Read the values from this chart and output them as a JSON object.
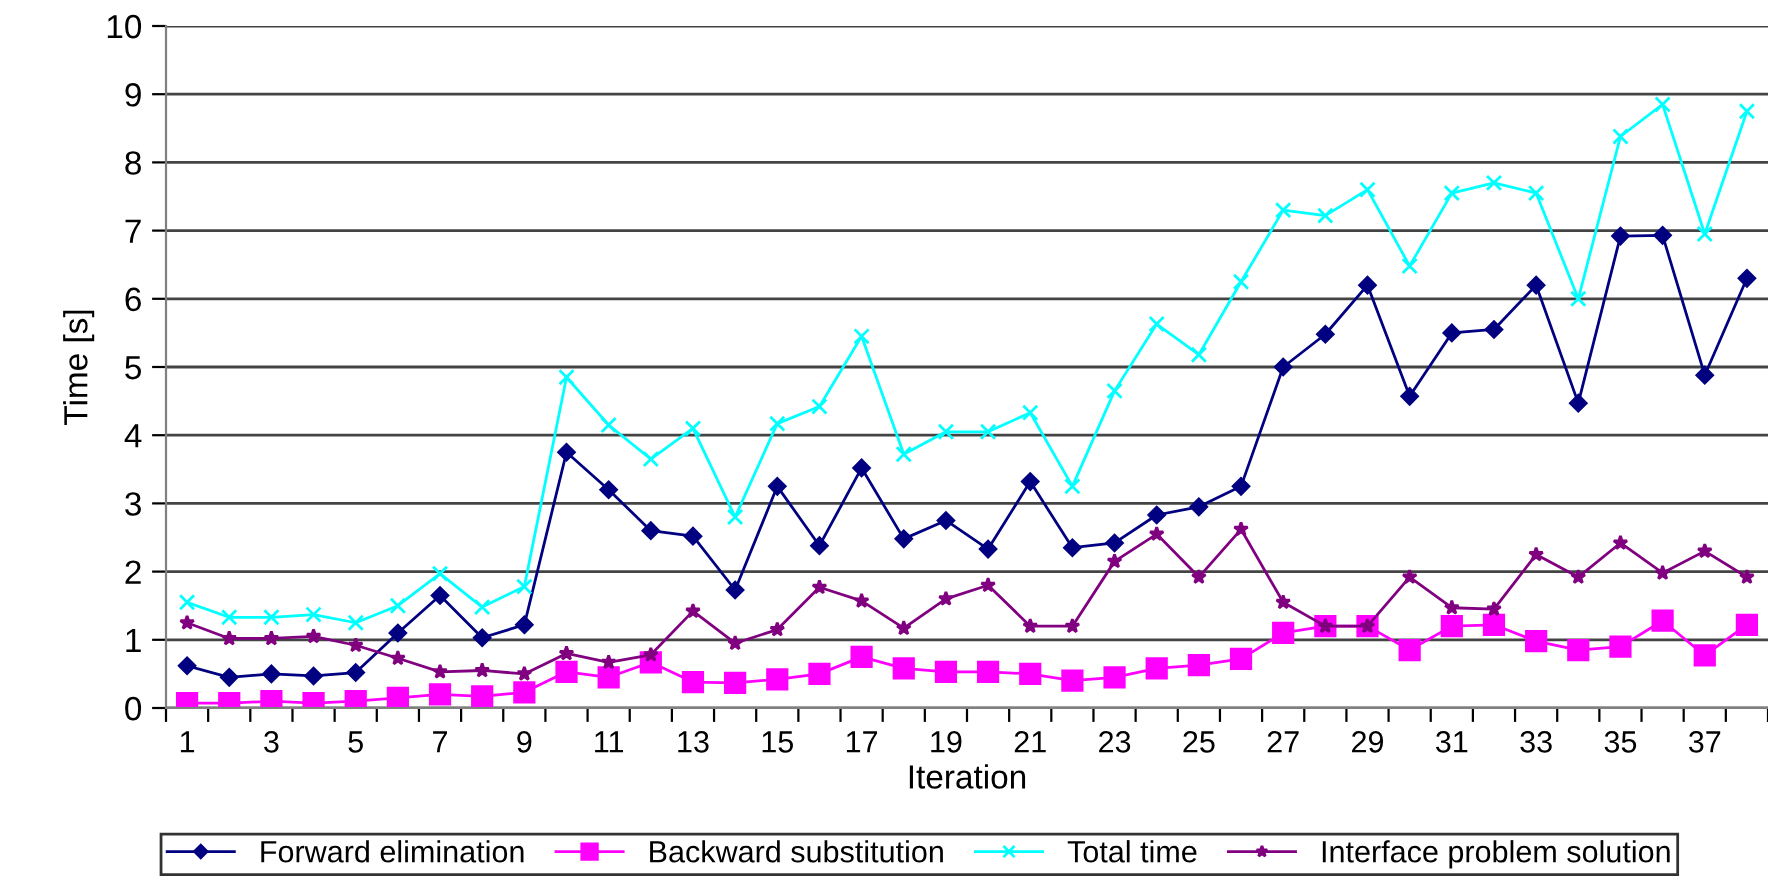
{
  "chart_data": {
    "type": "line",
    "xlabel": "Iteration",
    "ylabel": "Time [s]",
    "categories": [
      "1",
      null,
      "3",
      null,
      "5",
      null,
      "7",
      null,
      "9",
      null,
      "11",
      null,
      "13",
      null,
      "15",
      null,
      "17",
      null,
      "19",
      null,
      "21",
      null,
      "23",
      null,
      "25",
      null,
      "27",
      null,
      "29",
      null,
      "31",
      null,
      "33",
      null,
      "35",
      null,
      "37",
      null
    ],
    "ylim": [
      0,
      10
    ],
    "yticks": [
      0,
      1,
      2,
      3,
      4,
      5,
      6,
      7,
      8,
      9,
      10
    ],
    "grid": "y",
    "legend": "bottom",
    "line_style": "solid",
    "series": [
      {
        "name": "Forward elimination",
        "color": "#000080",
        "marker": "diamond",
        "values": [
          0.62,
          0.45,
          0.5,
          0.47,
          0.52,
          1.1,
          1.65,
          1.03,
          1.22,
          3.75,
          3.2,
          2.6,
          2.52,
          1.73,
          3.25,
          2.38,
          3.52,
          2.48,
          2.75,
          2.33,
          3.32,
          2.35,
          2.42,
          2.83,
          2.95,
          3.25,
          5.0,
          5.48,
          6.2,
          4.57,
          5.5,
          5.55,
          6.2,
          4.47,
          6.92,
          6.93,
          4.88,
          6.3
        ]
      },
      {
        "name": "Backward substitution",
        "color": "#ff00ff",
        "marker": "square",
        "values": [
          0.07,
          0.07,
          0.1,
          0.07,
          0.1,
          0.15,
          0.2,
          0.17,
          0.23,
          0.53,
          0.45,
          0.67,
          0.38,
          0.37,
          0.42,
          0.5,
          0.75,
          0.58,
          0.53,
          0.53,
          0.5,
          0.4,
          0.45,
          0.58,
          0.63,
          0.72,
          1.1,
          1.2,
          1.2,
          0.85,
          1.2,
          1.22,
          0.98,
          0.85,
          0.9,
          1.28,
          0.77,
          1.22
        ]
      },
      {
        "name": "Total time",
        "color": "#00ffff",
        "marker": "cross",
        "values": [
          1.55,
          1.33,
          1.33,
          1.37,
          1.25,
          1.5,
          1.97,
          1.48,
          1.78,
          4.85,
          4.15,
          3.65,
          4.1,
          2.8,
          4.17,
          4.42,
          5.45,
          3.72,
          4.05,
          4.05,
          4.33,
          3.25,
          4.65,
          5.63,
          5.18,
          6.25,
          7.3,
          7.22,
          7.6,
          6.48,
          7.55,
          7.7,
          7.55,
          6.0,
          8.38,
          8.85,
          6.95,
          8.75
        ]
      },
      {
        "name": "Interface problem solution",
        "color": "#800080",
        "marker": "star",
        "values": [
          1.25,
          1.02,
          1.02,
          1.05,
          0.92,
          0.73,
          0.53,
          0.55,
          0.5,
          0.8,
          0.67,
          0.78,
          1.42,
          0.95,
          1.15,
          1.77,
          1.57,
          1.17,
          1.6,
          1.8,
          1.2,
          1.2,
          2.15,
          2.55,
          1.92,
          2.62,
          1.55,
          1.2,
          1.2,
          1.92,
          1.47,
          1.45,
          2.25,
          1.92,
          2.42,
          1.98,
          2.3,
          1.92
        ]
      }
    ]
  }
}
